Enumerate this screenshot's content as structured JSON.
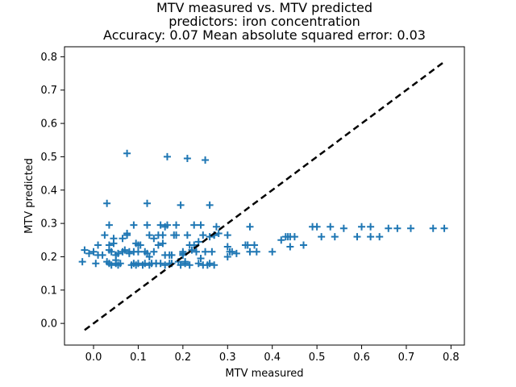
{
  "chart_data": {
    "type": "scatter",
    "title_lines": [
      "MTV measured vs. MTV predicted",
      "predictors: iron concentration",
      "Accuracy: 0.07 Mean absolute squared error: 0.03"
    ],
    "xlabel": "MTV measured",
    "ylabel": "MTV predicted",
    "xlim": [
      -0.065,
      0.83
    ],
    "ylim": [
      -0.065,
      0.83
    ],
    "xticks": [
      "0.0",
      "0.1",
      "0.2",
      "0.3",
      "0.4",
      "0.5",
      "0.6",
      "0.7",
      "0.8"
    ],
    "yticks": [
      "0.0",
      "0.1",
      "0.2",
      "0.3",
      "0.4",
      "0.5",
      "0.6",
      "0.7",
      "0.8"
    ],
    "grid": false,
    "marker": "+",
    "marker_color": "#1f77b4",
    "diagonal_line": {
      "from": [
        -0.02,
        -0.02
      ],
      "to": [
        0.785,
        0.785
      ],
      "style": "dashed",
      "color": "#000000"
    },
    "x": [
      -0.025,
      -0.02,
      -0.01,
      0.0,
      0.005,
      0.01,
      0.02,
      0.025,
      0.03,
      0.035,
      0.035,
      0.04,
      0.04,
      0.045,
      0.05,
      0.05,
      0.055,
      0.06,
      0.065,
      0.07,
      0.075,
      0.075,
      0.08,
      0.085,
      0.09,
      0.09,
      0.095,
      0.1,
      0.1,
      0.105,
      0.11,
      0.115,
      0.12,
      0.12,
      0.125,
      0.125,
      0.13,
      0.135,
      0.14,
      0.145,
      0.15,
      0.15,
      0.155,
      0.16,
      0.165,
      0.17,
      0.17,
      0.175,
      0.18,
      0.185,
      0.19,
      0.195,
      0.2,
      0.2,
      0.205,
      0.21,
      0.215,
      0.22,
      0.225,
      0.23,
      0.235,
      0.24,
      0.245,
      0.25,
      0.255,
      0.26,
      0.265,
      0.27,
      0.275,
      0.3,
      0.305,
      0.31,
      0.32,
      0.34,
      0.345,
      0.35,
      0.36,
      0.365,
      0.4,
      0.43,
      0.435,
      0.44,
      0.45,
      0.47,
      0.49,
      0.5,
      0.51,
      0.53,
      0.54,
      0.56,
      0.59,
      0.6,
      0.62,
      0.64,
      0.66,
      0.68,
      0.71,
      0.76,
      0.785,
      0.03,
      0.075,
      0.12,
      0.165,
      0.195,
      0.21,
      0.25,
      0.26,
      0.035,
      0.065,
      0.08,
      0.115,
      0.145,
      0.185,
      0.225,
      0.27,
      0.035,
      0.055,
      0.1,
      0.135,
      0.155,
      0.175,
      0.205,
      0.245,
      0.3,
      0.35,
      0.42,
      0.44,
      0.62,
      0.01,
      0.045,
      0.09,
      0.14,
      0.16,
      0.215,
      0.235,
      0.28,
      0.05,
      0.095,
      0.125,
      0.16,
      0.2,
      0.24,
      0.26,
      0.27,
      0.3
    ],
    "y": [
      0.185,
      0.22,
      0.21,
      0.215,
      0.18,
      0.235,
      0.205,
      0.265,
      0.185,
      0.295,
      0.18,
      0.215,
      0.175,
      0.24,
      0.205,
      0.18,
      0.21,
      0.18,
      0.215,
      0.22,
      0.51,
      0.265,
      0.215,
      0.175,
      0.295,
      0.18,
      0.175,
      0.235,
      0.18,
      0.235,
      0.175,
      0.18,
      0.295,
      0.21,
      0.175,
      0.265,
      0.18,
      0.215,
      0.18,
      0.265,
      0.295,
      0.18,
      0.265,
      0.175,
      0.295,
      0.18,
      0.205,
      0.18,
      0.265,
      0.295,
      0.185,
      0.175,
      0.205,
      0.215,
      0.18,
      0.265,
      0.175,
      0.22,
      0.295,
      0.215,
      0.245,
      0.295,
      0.175,
      0.215,
      0.175,
      0.26,
      0.215,
      0.175,
      0.29,
      0.265,
      0.215,
      0.215,
      0.21,
      0.235,
      0.235,
      0.29,
      0.235,
      0.215,
      0.215,
      0.26,
      0.26,
      0.26,
      0.26,
      0.235,
      0.29,
      0.29,
      0.26,
      0.29,
      0.26,
      0.285,
      0.26,
      0.29,
      0.26,
      0.26,
      0.285,
      0.285,
      0.285,
      0.285,
      0.285,
      0.36,
      0.27,
      0.36,
      0.5,
      0.355,
      0.495,
      0.49,
      0.355,
      0.235,
      0.255,
      0.21,
      0.215,
      0.235,
      0.265,
      0.235,
      0.265,
      0.22,
      0.175,
      0.215,
      0.255,
      0.24,
      0.205,
      0.185,
      0.265,
      0.2,
      0.215,
      0.25,
      0.23,
      0.29,
      0.205,
      0.255,
      0.215,
      0.18,
      0.205,
      0.235,
      0.18,
      0.27,
      0.19,
      0.24,
      0.2,
      0.29,
      0.21,
      0.195,
      0.18,
      0.265,
      0.23
    ]
  }
}
